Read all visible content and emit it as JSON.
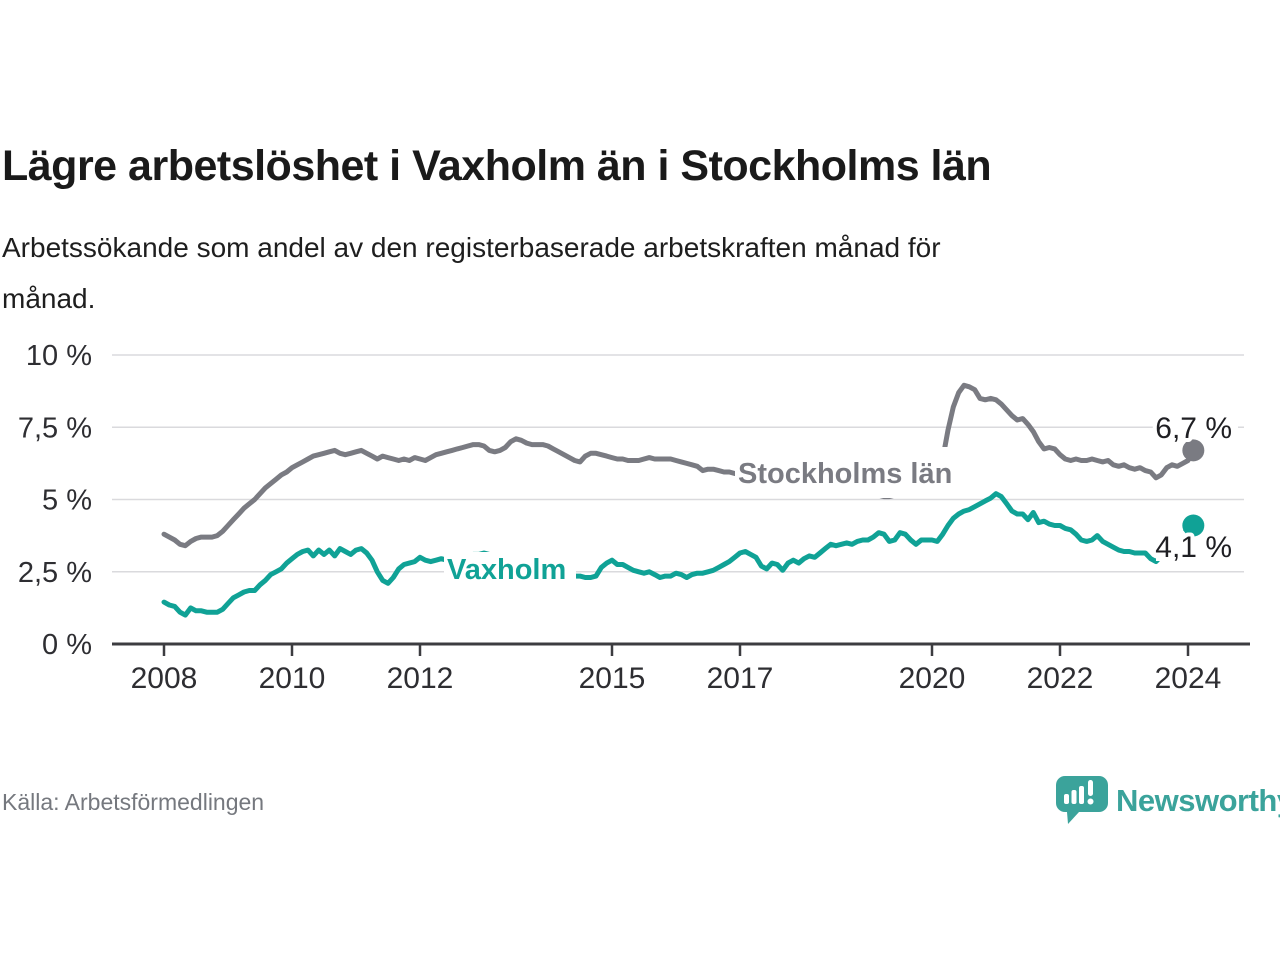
{
  "header": {
    "title": "Lägre arbetslöshet i Vaxholm än i Stockholms län",
    "subtitle_line1": "Arbetssökande som andel av den registerbaserade arbetskraften månad för",
    "subtitle_line2": "månad."
  },
  "footer": {
    "source": "Källa: Arbetsförmedlingen",
    "brand": "Newsworthy",
    "logo_icon": "newsworthy-speech-bubble-bar-chart-icon"
  },
  "colors": {
    "stockholm_line": "#7a7b82",
    "vaxholm_line": "#10a296",
    "grid": "#dadadd",
    "axis_line": "#3c3c40",
    "axis_text": "#2e2e32",
    "value_label_text": "#1f1f23",
    "brand_teal": "#3ba39b",
    "title_text": "#1a1a1a",
    "source_text": "#75787e"
  },
  "chart_data": {
    "type": "line",
    "frequency": "monthly",
    "x_start": {
      "year": 2008,
      "month": 1
    },
    "x_end": {
      "year": 2024,
      "month": 2
    },
    "ylim": [
      0,
      10
    ],
    "grid": "horizontal-only",
    "y_ticks": [
      {
        "value": 0,
        "label": "0 %"
      },
      {
        "value": 2.5,
        "label": "2,5 %"
      },
      {
        "value": 5,
        "label": "5 %"
      },
      {
        "value": 7.5,
        "label": "7,5 %"
      },
      {
        "value": 10,
        "label": "10 %"
      }
    ],
    "x_ticks": [
      {
        "year": 2008,
        "label": "2008"
      },
      {
        "year": 2010,
        "label": "2010"
      },
      {
        "year": 2012,
        "label": "2012"
      },
      {
        "year": 2015,
        "label": "2015"
      },
      {
        "year": 2017,
        "label": "2017"
      },
      {
        "year": 2020,
        "label": "2020"
      },
      {
        "year": 2022,
        "label": "2022"
      },
      {
        "year": 2024,
        "label": "2024"
      }
    ],
    "series": [
      {
        "name": "Stockholms län",
        "color": "#7a7b82",
        "end_label": "6,7 %",
        "end_value": 6.7,
        "values": [
          3.8,
          3.7,
          3.6,
          3.45,
          3.4,
          3.55,
          3.65,
          3.7,
          3.7,
          3.7,
          3.75,
          3.9,
          4.1,
          4.3,
          4.5,
          4.7,
          4.85,
          5.0,
          5.2,
          5.4,
          5.55,
          5.7,
          5.85,
          5.95,
          6.1,
          6.2,
          6.3,
          6.4,
          6.5,
          6.55,
          6.6,
          6.65,
          6.7,
          6.6,
          6.55,
          6.6,
          6.65,
          6.7,
          6.6,
          6.5,
          6.4,
          6.5,
          6.45,
          6.4,
          6.35,
          6.4,
          6.35,
          6.45,
          6.4,
          6.35,
          6.45,
          6.55,
          6.6,
          6.65,
          6.7,
          6.75,
          6.8,
          6.85,
          6.9,
          6.9,
          6.85,
          6.7,
          6.65,
          6.7,
          6.8,
          7.0,
          7.1,
          7.05,
          6.95,
          6.9,
          6.9,
          6.9,
          6.85,
          6.75,
          6.65,
          6.55,
          6.45,
          6.35,
          6.3,
          6.5,
          6.6,
          6.6,
          6.55,
          6.5,
          6.45,
          6.4,
          6.4,
          6.35,
          6.35,
          6.35,
          6.4,
          6.45,
          6.4,
          6.4,
          6.4,
          6.4,
          6.35,
          6.3,
          6.25,
          6.2,
          6.15,
          6.0,
          6.05,
          6.05,
          6.0,
          5.95,
          5.95,
          5.9,
          5.9,
          5.85,
          5.8,
          5.75,
          5.7,
          5.7,
          5.75,
          5.7,
          5.65,
          5.6,
          5.6,
          5.6,
          5.55,
          5.5,
          5.45,
          5.4,
          5.35,
          5.3,
          5.35,
          5.3,
          5.25,
          5.2,
          5.2,
          5.2,
          5.2,
          5.2,
          5.15,
          5.1,
          5.1,
          5.15,
          5.2,
          5.25,
          5.3,
          5.35,
          5.4,
          5.45,
          5.6,
          5.9,
          6.4,
          7.4,
          8.2,
          8.7,
          8.95,
          8.9,
          8.8,
          8.5,
          8.45,
          8.5,
          8.45,
          8.3,
          8.1,
          7.9,
          7.75,
          7.8,
          7.6,
          7.35,
          7.0,
          6.75,
          6.8,
          6.75,
          6.55,
          6.4,
          6.35,
          6.4,
          6.35,
          6.35,
          6.4,
          6.35,
          6.3,
          6.35,
          6.2,
          6.15,
          6.2,
          6.1,
          6.05,
          6.1,
          6.0,
          5.95,
          5.75,
          5.85,
          6.1,
          6.2,
          6.15,
          6.25,
          6.35,
          6.7
        ]
      },
      {
        "name": "Vaxholm",
        "color": "#10a296",
        "end_label": "4,1 %",
        "end_value": 4.1,
        "values": [
          1.45,
          1.35,
          1.3,
          1.1,
          1.0,
          1.25,
          1.15,
          1.15,
          1.1,
          1.1,
          1.1,
          1.2,
          1.4,
          1.6,
          1.7,
          1.8,
          1.85,
          1.85,
          2.05,
          2.2,
          2.4,
          2.5,
          2.6,
          2.8,
          2.95,
          3.1,
          3.2,
          3.25,
          3.05,
          3.25,
          3.1,
          3.25,
          3.05,
          3.3,
          3.2,
          3.1,
          3.25,
          3.3,
          3.15,
          2.9,
          2.5,
          2.2,
          2.1,
          2.3,
          2.6,
          2.75,
          2.8,
          2.85,
          3.0,
          2.9,
          2.85,
          2.9,
          2.95,
          2.9,
          2.95,
          3.0,
          3.05,
          3.05,
          3.1,
          3.1,
          3.15,
          3.1,
          3.0,
          2.9,
          2.8,
          2.7,
          2.65,
          2.6,
          2.55,
          2.5,
          2.45,
          2.4,
          2.4,
          2.35,
          2.35,
          2.35,
          2.3,
          2.35,
          2.35,
          2.3,
          2.3,
          2.35,
          2.65,
          2.8,
          2.9,
          2.75,
          2.75,
          2.65,
          2.55,
          2.5,
          2.45,
          2.5,
          2.4,
          2.3,
          2.35,
          2.35,
          2.45,
          2.4,
          2.3,
          2.4,
          2.45,
          2.45,
          2.5,
          2.55,
          2.65,
          2.75,
          2.85,
          3.0,
          3.15,
          3.2,
          3.1,
          3.0,
          2.7,
          2.6,
          2.8,
          2.75,
          2.55,
          2.8,
          2.9,
          2.8,
          2.95,
          3.05,
          3.0,
          3.15,
          3.3,
          3.45,
          3.4,
          3.45,
          3.5,
          3.45,
          3.55,
          3.6,
          3.6,
          3.7,
          3.85,
          3.8,
          3.55,
          3.6,
          3.85,
          3.8,
          3.6,
          3.45,
          3.6,
          3.6,
          3.6,
          3.55,
          3.8,
          4.1,
          4.35,
          4.5,
          4.6,
          4.65,
          4.75,
          4.85,
          4.95,
          5.05,
          5.2,
          5.1,
          4.85,
          4.6,
          4.5,
          4.5,
          4.3,
          4.55,
          4.2,
          4.25,
          4.15,
          4.1,
          4.1,
          4.0,
          3.95,
          3.8,
          3.6,
          3.55,
          3.6,
          3.75,
          3.55,
          3.45,
          3.35,
          3.25,
          3.2,
          3.2,
          3.15,
          3.15,
          3.15,
          2.95,
          2.85,
          3.05,
          3.0,
          3.05,
          3.3,
          3.7,
          4.05,
          4.1
        ]
      }
    ]
  }
}
